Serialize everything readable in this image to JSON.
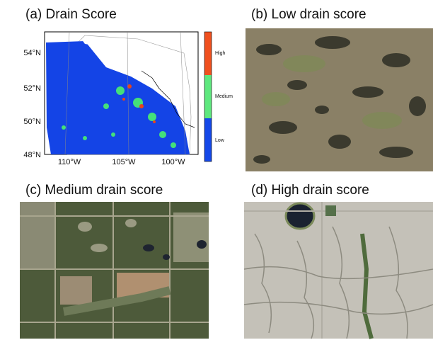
{
  "panels": [
    {
      "title": "(a) Drain Score",
      "y_axis_labels": [
        "54°N",
        "52°N",
        "50°N",
        "48°N"
      ],
      "x_axis_labels": [
        "110°W",
        "105°W",
        "100°W"
      ],
      "colorbar_labels": [
        "High",
        "Medium",
        "Low"
      ]
    },
    {
      "title": "(b) Low drain score"
    },
    {
      "title": "(c) Medium drain score"
    },
    {
      "title": "(d) High drain score"
    }
  ]
}
